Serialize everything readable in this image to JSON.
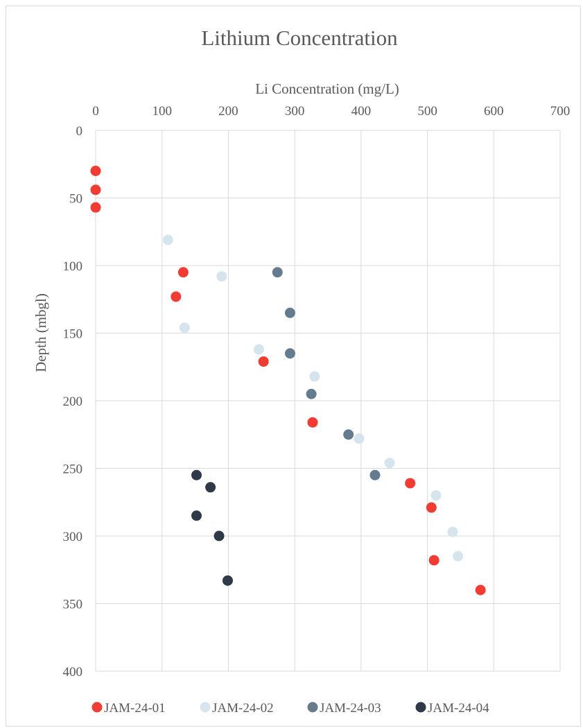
{
  "chart_data": {
    "type": "scatter",
    "title": "Lithium Concentration",
    "xlabel": "Li Concentration (mg/L)",
    "ylabel": "Depth (mbgl)",
    "xlim": [
      0,
      700
    ],
    "ylim": [
      0,
      400
    ],
    "y_inverted": true,
    "x_axis_position": "top",
    "x_ticks": [
      "0",
      "100",
      "200",
      "300",
      "400",
      "500",
      "600",
      "700"
    ],
    "y_ticks": [
      "0",
      "50",
      "100",
      "150",
      "200",
      "250",
      "300",
      "350",
      "400"
    ],
    "grid": true,
    "legend_position": "bottom",
    "series": [
      {
        "name": "JAM-24-01",
        "color": "#f03c32",
        "points": [
          [
            0,
            30
          ],
          [
            0,
            44
          ],
          [
            0,
            57
          ],
          [
            132,
            105
          ],
          [
            121,
            123
          ],
          [
            253,
            171
          ],
          [
            327,
            216
          ],
          [
            474,
            261
          ],
          [
            506,
            279
          ],
          [
            510,
            318
          ],
          [
            580,
            340
          ]
        ]
      },
      {
        "name": "JAM-24-02",
        "color": "#d6e4ee",
        "points": [
          [
            109,
            81
          ],
          [
            190,
            108
          ],
          [
            134,
            146
          ],
          [
            246,
            162
          ],
          [
            330,
            182
          ],
          [
            397,
            228
          ],
          [
            443,
            246
          ],
          [
            513,
            270
          ],
          [
            538,
            297
          ],
          [
            546,
            315
          ]
        ]
      },
      {
        "name": "JAM-24-03",
        "color": "#657b8e",
        "points": [
          [
            274,
            105
          ],
          [
            293,
            135
          ],
          [
            293,
            165
          ],
          [
            325,
            195
          ],
          [
            381,
            225
          ],
          [
            421,
            255
          ]
        ]
      },
      {
        "name": "JAM-24-04",
        "color": "#2f3a48",
        "points": [
          [
            152,
            255
          ],
          [
            173,
            264
          ],
          [
            152,
            285
          ],
          [
            186,
            300
          ],
          [
            199,
            333
          ]
        ]
      }
    ]
  }
}
